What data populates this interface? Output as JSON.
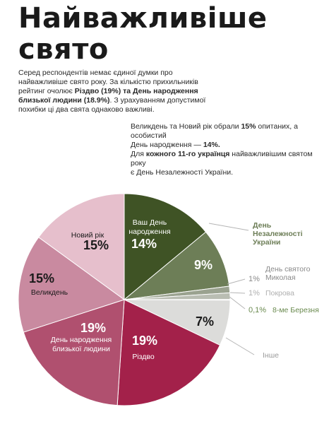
{
  "title_line1": "Найважливіше",
  "title_line2": "свято",
  "intro": {
    "p1_a": "Серед респондентів немає єдиної думки про найважливіше свято року. За кількістю прихильників рейтинг очолює ",
    "p1_b": "Різдво (19%) та День народження близької людини (18.9%)",
    "p1_c": ". З урахуванням допустимої похибки ці два свята однаково важливі."
  },
  "note": {
    "l1_a": "Великдень та Новий рік обрали ",
    "l1_b": "15%",
    "l1_c": " опитаних, а особистий",
    "l2_a": "День народження — ",
    "l2_b": "14%.",
    "l3_a": "Для ",
    "l3_b": "кожного 11-го українця",
    "l3_c": " найважливішим святом року",
    "l4": "є День Незалежності України."
  },
  "chart_data": {
    "type": "pie",
    "title": "Найважливіше свято",
    "slices": [
      {
        "label": "Ваш День народження",
        "value_label": "14%",
        "value": 14,
        "color": "#3f5325",
        "label_color": "#ffffff"
      },
      {
        "label": "День Незалежності України",
        "value_label": "9%",
        "value": 9,
        "color": "#6d7e57",
        "label_color": "#ffffff"
      },
      {
        "label": "День святого Миколая",
        "value_label": "1%",
        "value": 1,
        "color": "#9aa28f",
        "label_color": "#8a8a8a"
      },
      {
        "label": "Покрова",
        "value_label": "1%",
        "value": 1,
        "color": "#b9bdb2",
        "label_color": "#b0b0b0"
      },
      {
        "label": "8-ме Березня",
        "value_label": "0,1%",
        "value": 0.1,
        "color": "#7f9a66",
        "label_color": "#6a8a4f"
      },
      {
        "label": "Інше",
        "value_label": "7%",
        "value": 7,
        "color": "#dcdcda",
        "label_color": "#1a1a1a"
      },
      {
        "label": "Різдво",
        "value_label": "19%",
        "value": 19,
        "color": "#a3214a",
        "label_color": "#ffffff"
      },
      {
        "label": "День народження близької людини",
        "value_label": "19%",
        "value": 19,
        "color": "#b0506f",
        "label_color": "#ffffff"
      },
      {
        "label": "Великдень",
        "value_label": "15%",
        "value": 15,
        "color": "#c98aa0",
        "label_color": "#1a1a1a"
      },
      {
        "label": "Новий рік",
        "value_label": "15%",
        "value": 15,
        "color": "#e6bfcc",
        "label_color": "#1a1a1a"
      }
    ]
  }
}
